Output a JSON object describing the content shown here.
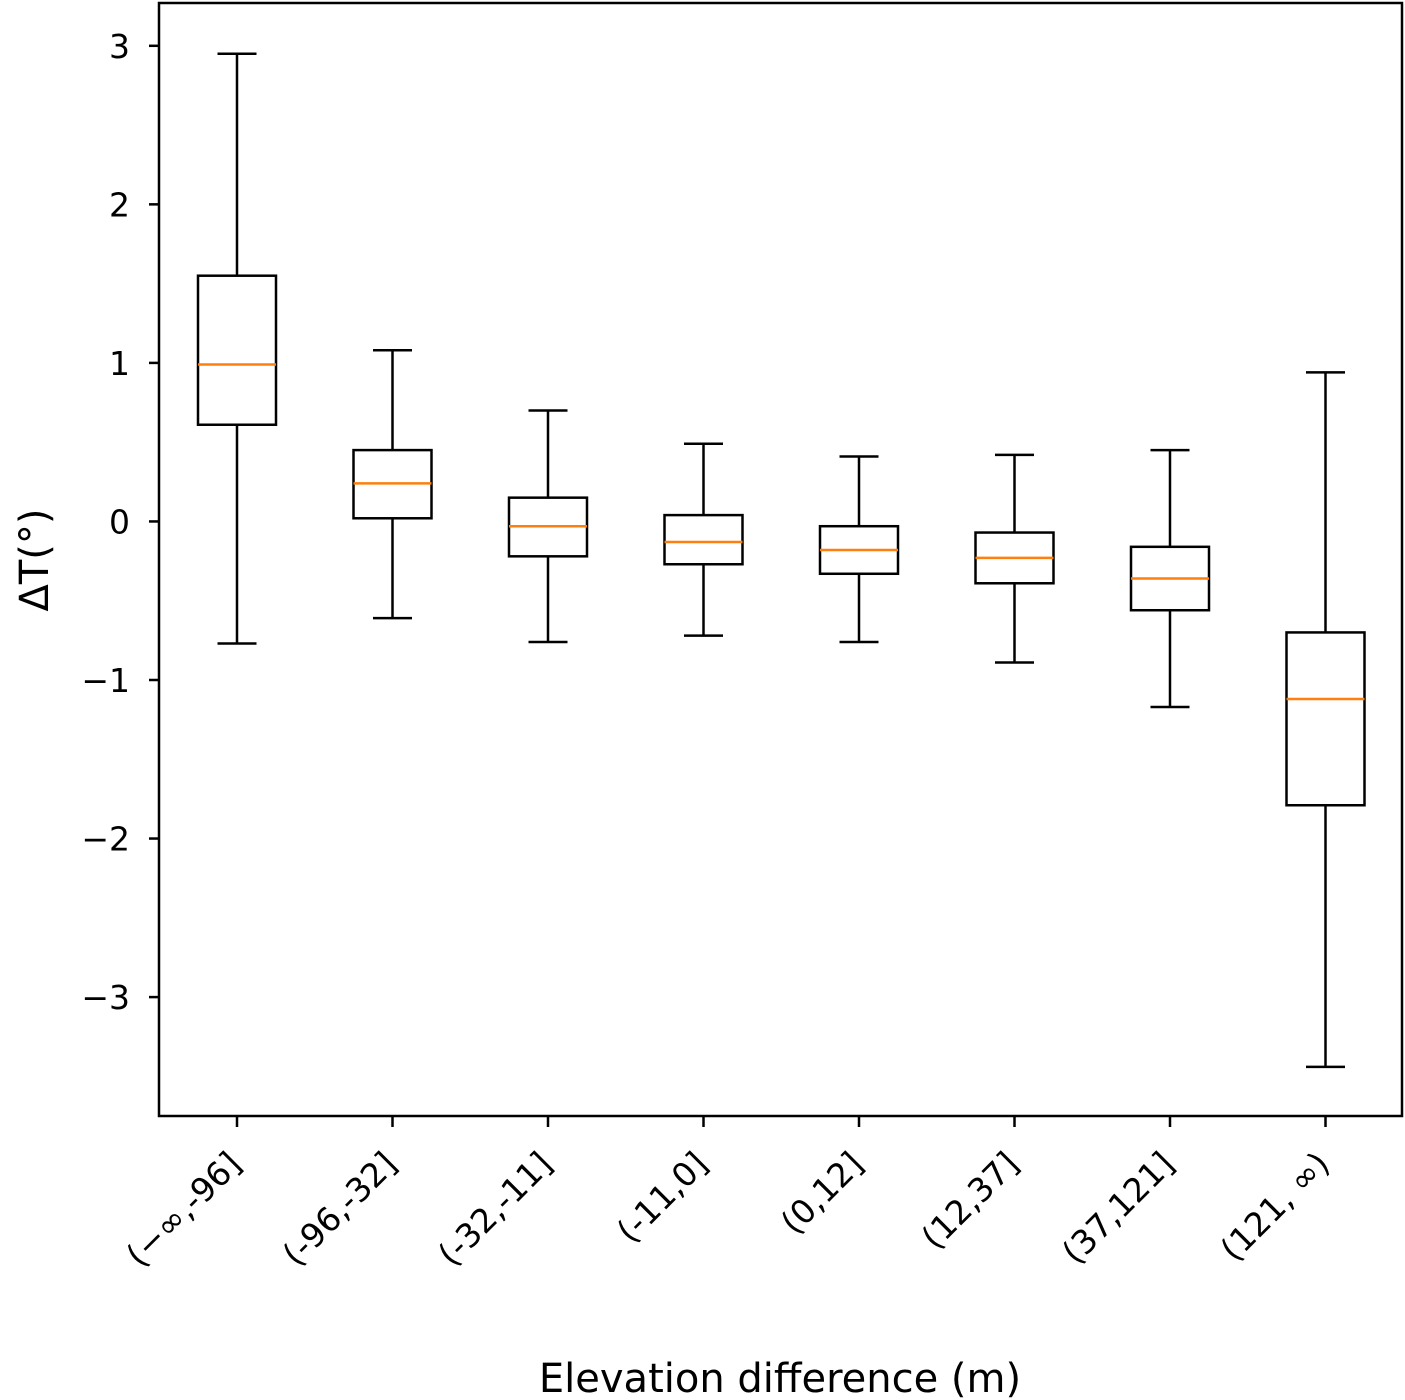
{
  "chart_data": {
    "type": "boxplot",
    "title": "",
    "xlabel": "Elevation difference (m)",
    "ylabel": "ΔT(°)",
    "ylim": [
      -3.75,
      3.27
    ],
    "yticks": [
      3,
      2,
      1,
      0,
      -1,
      -2,
      -3
    ],
    "ytick_labels": [
      "3",
      "2",
      "1",
      "0",
      "−1",
      "−2",
      "−3"
    ],
    "grid": false,
    "colors": {
      "box": "#000000",
      "median": "#ff7f0e",
      "background": "#ffffff"
    },
    "categories": [
      "(−∞,-96]",
      "(-96,-32]",
      "(-32,-11]",
      "(-11,0]",
      "(0,12]",
      "(12,37]",
      "(37,121]",
      "(121, ∞)"
    ],
    "boxes": [
      {
        "whisker_low": -0.77,
        "q1": 0.61,
        "median": 0.99,
        "q3": 1.55,
        "whisker_high": 2.95
      },
      {
        "whisker_low": -0.61,
        "q1": 0.02,
        "median": 0.24,
        "q3": 0.45,
        "whisker_high": 1.08
      },
      {
        "whisker_low": -0.76,
        "q1": -0.22,
        "median": -0.03,
        "q3": 0.15,
        "whisker_high": 0.7
      },
      {
        "whisker_low": -0.72,
        "q1": -0.27,
        "median": -0.13,
        "q3": 0.04,
        "whisker_high": 0.49
      },
      {
        "whisker_low": -0.76,
        "q1": -0.33,
        "median": -0.18,
        "q3": -0.03,
        "whisker_high": 0.41
      },
      {
        "whisker_low": -0.89,
        "q1": -0.39,
        "median": -0.23,
        "q3": -0.07,
        "whisker_high": 0.42
      },
      {
        "whisker_low": -1.17,
        "q1": -0.56,
        "median": -0.36,
        "q3": -0.16,
        "whisker_high": 0.45
      },
      {
        "whisker_low": -3.44,
        "q1": -1.79,
        "median": -1.12,
        "q3": -0.7,
        "whisker_high": 0.94
      }
    ]
  }
}
